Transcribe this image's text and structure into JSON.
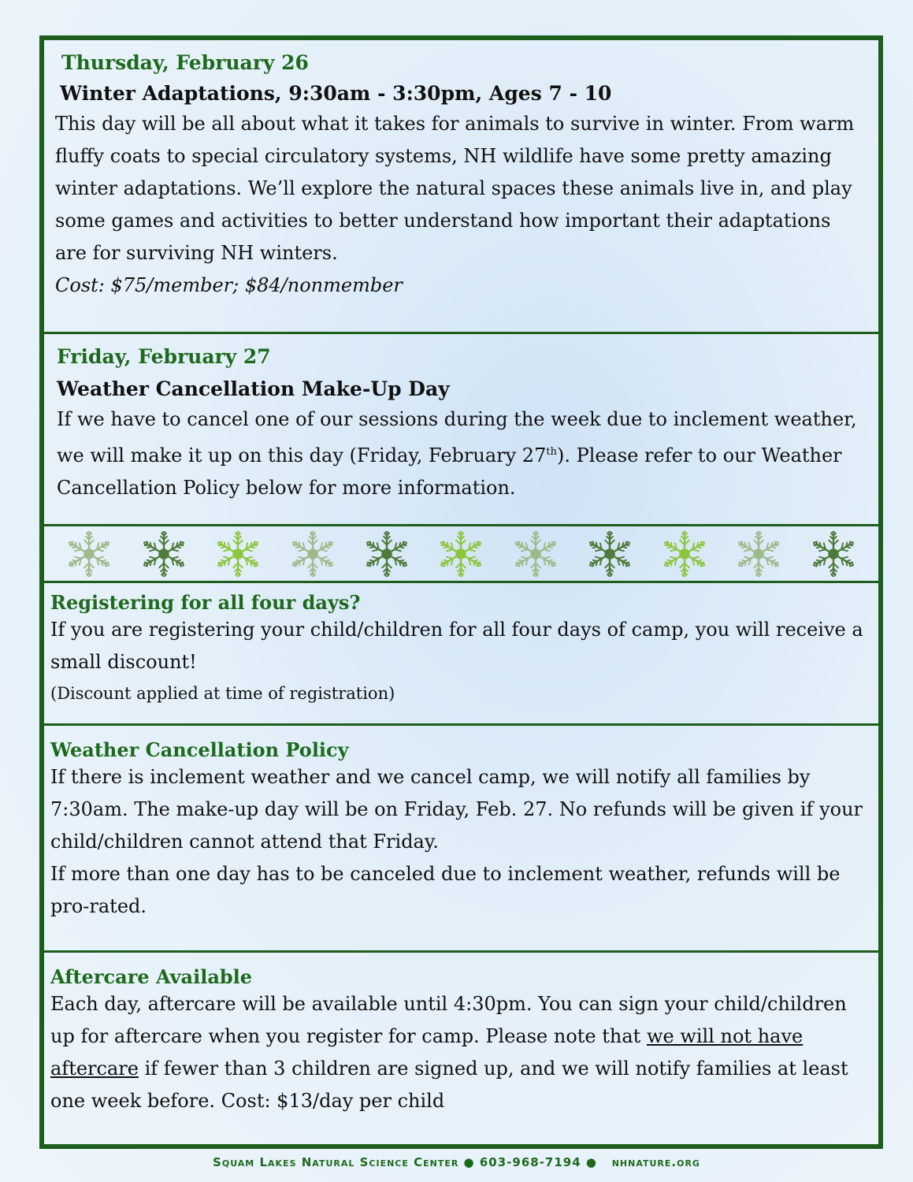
{
  "thursday": {
    "date": "Thursday, February 26",
    "title": "Winter Adaptations, 9:30am - 3:30pm, Ages 7 - 10",
    "body": "This day will be all about what it takes for animals to survive in winter. From warm fluffy coats to special circulatory systems, NH wildlife have some pretty amazing winter adaptations. We’ll explore the natural spaces these animals live in, and play some games and activities to better understand how important their adaptations are for surviving NH winters.",
    "cost": "Cost: $75/member; $84/nonmember"
  },
  "friday": {
    "date": "Friday, February 27",
    "title": "Weather Cancellation Make-Up Day",
    "body_1": "If we have to cancel one of our sessions during the week due to inclement weather, we will make it up on this day (Friday, February 27",
    "sup": "th",
    "body_2": "). Please refer to our Weather Cancellation Policy below for more information."
  },
  "snowflakes": {
    "icon": "snowflake-icon",
    "colors": [
      "#9fba8a",
      "#4e7a3a",
      "#8cc63f",
      "#9fba8a",
      "#4e7a3a",
      "#8cc63f",
      "#9fba8a",
      "#4e7a3a",
      "#8cc63f",
      "#9fba8a",
      "#4e7a3a"
    ]
  },
  "registering": {
    "heading": "Registering for all four days?",
    "body": "If you are registering your child/children for all four days of camp, you will receive a small discount!",
    "note": "(Discount applied at time of registration)"
  },
  "weather": {
    "heading": "Weather Cancellation Policy",
    "body_1": "If there is inclement weather and we cancel camp, we will notify all families by 7:30am. The make-up day will be on Friday, Feb. 27. No refunds will be given if your child/children cannot attend that Friday.",
    "body_2": "If more than one day has to be canceled due to inclement weather, refunds will be pro-rated."
  },
  "aftercare": {
    "heading": "Aftercare Available",
    "body_1": "Each day, aftercare will be available until 4:30pm. You can sign your child/children up for aftercare when you register for camp. Please note that ",
    "underlined": "we will not have aftercare",
    "body_2": " if fewer than 3 children are signed up, and we will notify families at least one week before. Cost: $13/day per child"
  },
  "footer": {
    "org": "Squam Lakes Natural Science Center",
    "phone": "603-968-7194",
    "site": "nhnature.org"
  },
  "colors": {
    "frame": "#1d5e1d",
    "heading_green": "#1d6a1d"
  }
}
